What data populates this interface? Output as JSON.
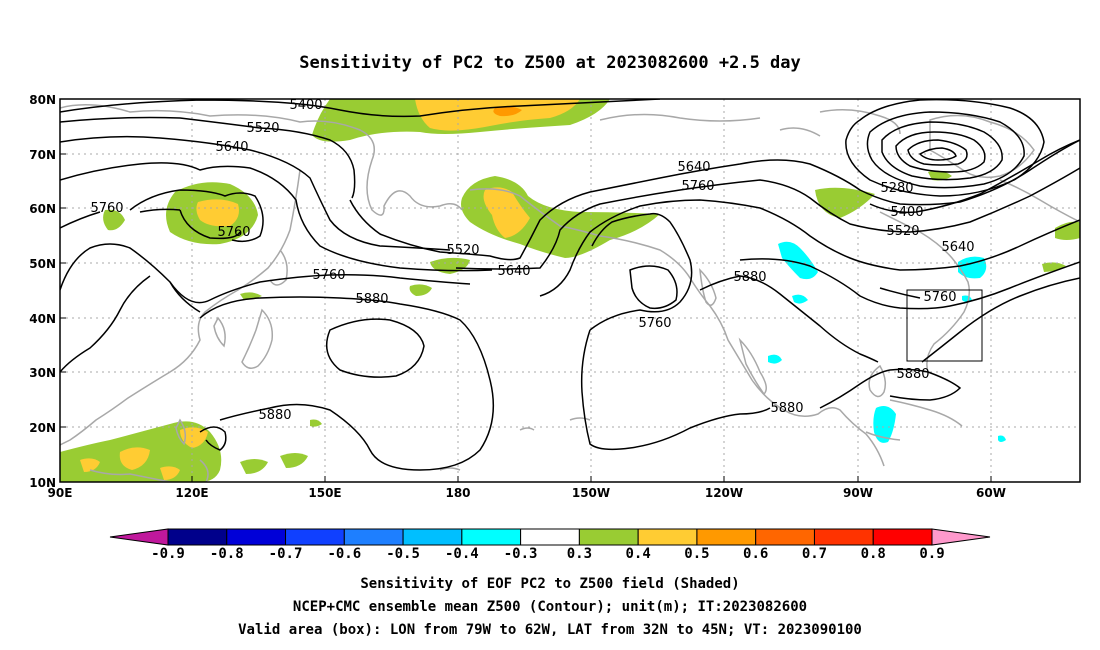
{
  "title": "Sensitivity of PC2 to Z500 at 2023082600 +2.5 day",
  "lat_ticks": [
    "80N",
    "70N",
    "60N",
    "50N",
    "40N",
    "30N",
    "20N",
    "10N"
  ],
  "lon_ticks": [
    "90E",
    "120E",
    "150E",
    "180",
    "150W",
    "120W",
    "90W",
    "60W"
  ],
  "contour_labels": {
    "c5400a": "5400",
    "c5520a": "5520",
    "c5640a": "5640",
    "c5760a": "5760",
    "c5760b": "5760",
    "c5520b": "5520",
    "c5640b": "5640",
    "c5760c": "5760",
    "c5880a": "5880",
    "c5880b": "5880",
    "c5640c": "5640",
    "c5760d": "5760",
    "c5760e": "5760",
    "c5880c": "5880",
    "c5880d": "5880",
    "c5280": "5280",
    "c5400b": "5400",
    "c5520c": "5520",
    "c5640d": "5640",
    "c5760f": "5760",
    "c5880e": "5880"
  },
  "colorbar": {
    "labels": [
      "-0.9",
      "-0.8",
      "-0.7",
      "-0.6",
      "-0.5",
      "-0.4",
      "-0.3",
      "0.3",
      "0.4",
      "0.5",
      "0.6",
      "0.7",
      "0.8",
      "0.9"
    ],
    "colors": [
      "#00008b",
      "#0000d8",
      "#1040ff",
      "#1e7fff",
      "#00bfff",
      "#00ffff",
      "#ffffff",
      "#99cc33",
      "#ffcc33",
      "#ff9900",
      "#ff6600",
      "#ff3300",
      "#ff0000"
    ],
    "under_color": "#c0189c",
    "over_color": "#ff99cc"
  },
  "caption": [
    "Sensitivity of EOF PC2 to Z500 field (Shaded)",
    "NCEP+CMC ensemble mean Z500 (Contour); unit(m); IT:2023082600",
    "Valid area (box): LON from 79W to 62W, LAT from 32N to 45N; VT: 2023090100"
  ],
  "valid_box": {
    "lon_min": -79,
    "lon_max": -62,
    "lat_min": 32,
    "lat_max": 45
  },
  "colors": {
    "contour": "#000000",
    "coast": "#a8a8a8",
    "grid": "#a8a8a8"
  }
}
